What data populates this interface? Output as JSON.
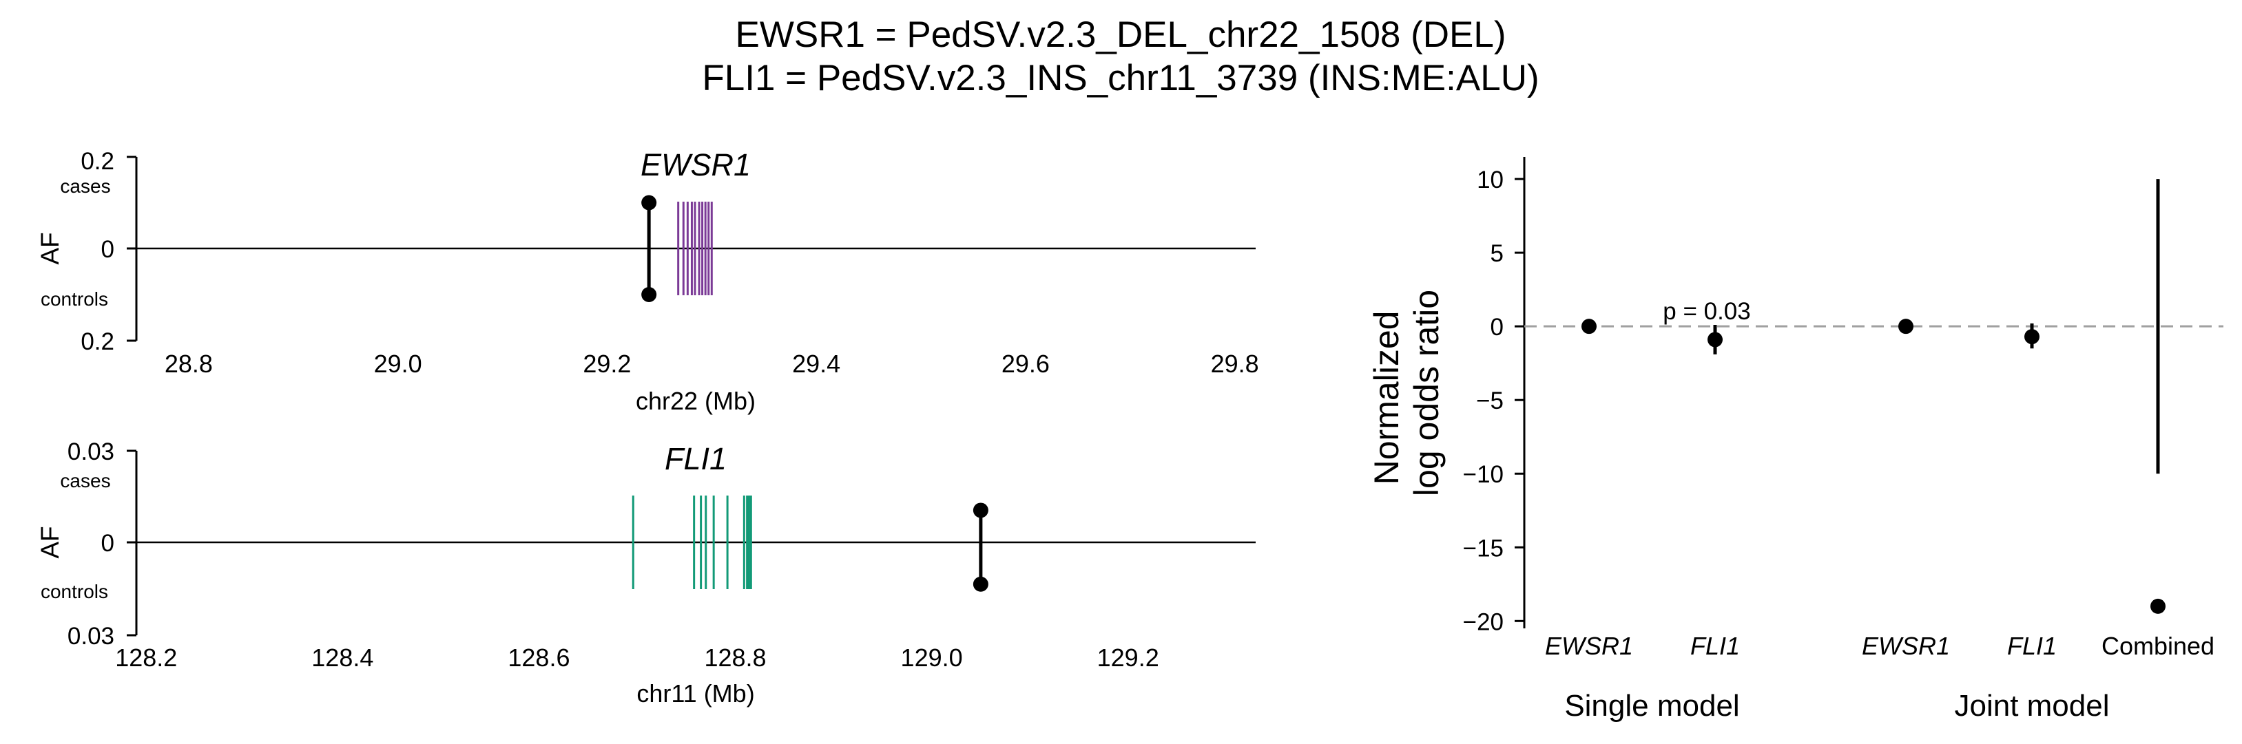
{
  "figure": {
    "title_line1": "EWSR1 = PedSV.v2.3_DEL_chr22_1508 (DEL)",
    "title_line2": "FLI1 = PedSV.v2.3_INS_chr11_3739 (INS:ME:ALU)"
  },
  "colors": {
    "ewsr1_exons": "#7b3a96",
    "fli1_exons": "#129a77",
    "markers": "#000000",
    "null_line": "#a0a0a0"
  },
  "chart_data": [
    {
      "type": "scatter",
      "panel": "EWSR1 locus",
      "gene_label": "EWSR1",
      "xlabel": "chr22 (Mb)",
      "ylabel": "AF",
      "xlim": [
        28.75,
        29.82
      ],
      "ylim_cases": [
        0,
        0.2
      ],
      "ylim_controls": [
        0,
        0.2
      ],
      "x_ticks": [
        "28.8",
        "29.0",
        "29.2",
        "29.4",
        "29.6",
        "29.8"
      ],
      "y_ticks": {
        "top": "0.2",
        "zero": "0",
        "bottom": "0.2"
      },
      "y_sublabels": {
        "cases": "cases",
        "controls": "controls"
      },
      "variant": {
        "x": 29.24,
        "af_cases": 0.1,
        "af_controls": 0.1
      },
      "exons": [
        29.268,
        29.273,
        29.277,
        29.281,
        29.284,
        29.288,
        29.291,
        29.294,
        29.297,
        29.3
      ]
    },
    {
      "type": "scatter",
      "panel": "FLI1 locus",
      "gene_label": "FLI1",
      "xlabel": "chr11 (Mb)",
      "ylabel": "AF",
      "xlim": [
        128.19,
        129.33
      ],
      "ylim_cases": [
        0,
        0.03
      ],
      "ylim_controls": [
        0,
        0.03
      ],
      "x_ticks": [
        "128.2",
        "128.4",
        "128.6",
        "128.8",
        "129.0",
        "129.2"
      ],
      "y_ticks": {
        "top": "0.03",
        "zero": "0",
        "bottom": "0.03"
      },
      "y_sublabels": {
        "cases": "cases",
        "controls": "controls"
      },
      "variant": {
        "x": 129.05,
        "af_cases": 0.0105,
        "af_controls": 0.0135
      },
      "exons": [
        128.696,
        128.758,
        128.765,
        128.77,
        128.778,
        128.792,
        128.809,
        128.812,
        128.814,
        128.816
      ]
    },
    {
      "type": "scatter",
      "panel": "Log odds ratios",
      "ylabel": "Normalized\nlog odds ratio",
      "ylim": [
        -20.5,
        11.5
      ],
      "y_ticks": [
        10,
        5,
        0,
        -5,
        -10,
        -15,
        -20
      ],
      "reference_line": 0,
      "categories": [
        "EWSR1",
        "FLI1",
        "EWSR1",
        "FLI1",
        "Combined"
      ],
      "groups": [
        {
          "name": "Single model",
          "members": [
            0,
            1
          ]
        },
        {
          "name": "Joint model",
          "members": [
            2,
            3,
            4
          ]
        }
      ],
      "values": [
        0,
        -0.9,
        0,
        -0.7,
        -19
      ],
      "ci": [
        [
          0,
          0
        ],
        [
          -1.9,
          0.1
        ],
        [
          0,
          0
        ],
        [
          -1.5,
          0.2
        ],
        [
          -10,
          10
        ]
      ],
      "annotation": {
        "text": "p = 0.03",
        "category_index": 1
      }
    }
  ]
}
